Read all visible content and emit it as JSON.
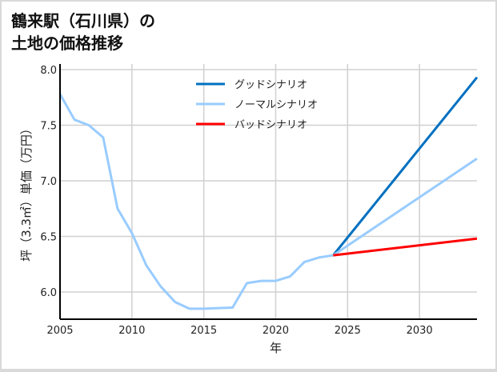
{
  "title_lines": [
    "鶴来駅（石川県）の",
    "土地の価格推移"
  ],
  "chart_data": {
    "type": "line",
    "title": "鶴来駅（石川県）の土地の価格推移",
    "xlabel": "年",
    "ylabel": "坪（3.3㎡）単価（万円）",
    "xlim": [
      2005,
      2034
    ],
    "ylim": [
      5.75,
      8.0
    ],
    "xticks": [
      2005,
      2010,
      2015,
      2020,
      2025,
      2030
    ],
    "yticks": [
      6.0,
      6.5,
      7.0,
      7.5,
      8.0
    ],
    "grid": true,
    "legend_position": "upper center",
    "series": [
      {
        "name": "グッドシナリオ",
        "color": "#0070c0",
        "x": [
          2024,
          2034
        ],
        "values": [
          6.33,
          7.93
        ]
      },
      {
        "name": "ノーマルシナリオ",
        "color": "#99ccff",
        "x": [
          2005,
          2006,
          2007,
          2008,
          2009,
          2010,
          2011,
          2012,
          2013,
          2014,
          2015,
          2016,
          2017,
          2018,
          2019,
          2020,
          2021,
          2022,
          2023,
          2024,
          2034
        ],
        "values": [
          7.78,
          7.55,
          7.5,
          7.39,
          6.75,
          6.53,
          6.24,
          6.05,
          5.91,
          5.85,
          5.85,
          5.855,
          5.86,
          6.08,
          6.1,
          6.1,
          6.14,
          6.27,
          6.31,
          6.33,
          7.2
        ]
      },
      {
        "name": "バッドシナリオ",
        "color": "#ff0000",
        "x": [
          2024,
          2034
        ],
        "values": [
          6.33,
          6.48
        ]
      }
    ]
  }
}
